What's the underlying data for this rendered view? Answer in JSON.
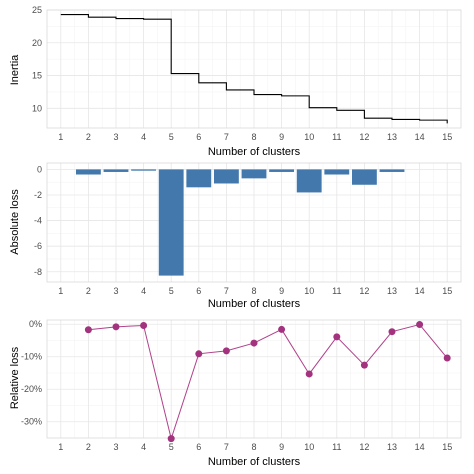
{
  "chart_data": [
    {
      "type": "line",
      "step": true,
      "title": "",
      "xlabel": "Number of clusters",
      "ylabel": "Inertia",
      "xlim": [
        0.5,
        15.5
      ],
      "ylim": [
        7,
        25
      ],
      "x_ticks": [
        1,
        2,
        3,
        4,
        5,
        6,
        7,
        8,
        9,
        10,
        11,
        12,
        13,
        14,
        15
      ],
      "y_ticks": [
        10,
        15,
        20,
        25
      ],
      "y_tick_labels": [
        "10",
        "15",
        "20",
        "25"
      ],
      "grid": true,
      "x": [
        1,
        2,
        3,
        4,
        5,
        6,
        7,
        8,
        9,
        10,
        11,
        12,
        13,
        14,
        15
      ],
      "values": [
        24.3,
        23.9,
        23.7,
        23.6,
        15.3,
        13.9,
        12.8,
        12.1,
        11.9,
        10.1,
        9.7,
        8.5,
        8.3,
        8.2,
        7.7
      ],
      "line_color": "#000000"
    },
    {
      "type": "bar",
      "title": "",
      "xlabel": "Number of clusters",
      "ylabel": "Absolute loss",
      "xlim": [
        0.5,
        15.5
      ],
      "ylim": [
        -8.8,
        0.5
      ],
      "x_ticks": [
        1,
        2,
        3,
        4,
        5,
        6,
        7,
        8,
        9,
        10,
        11,
        12,
        13,
        14,
        15
      ],
      "y_ticks": [
        0,
        -2,
        -4,
        -6,
        -8
      ],
      "y_tick_labels": [
        "0",
        "-2",
        "-4",
        "-6",
        "-8"
      ],
      "grid": true,
      "x": [
        2,
        3,
        4,
        5,
        6,
        7,
        8,
        9,
        10,
        11,
        12,
        13
      ],
      "values": [
        -0.4,
        -0.2,
        -0.1,
        -8.3,
        -1.4,
        -1.1,
        -0.7,
        -0.2,
        -1.8,
        -0.4,
        -1.2,
        -0.2
      ],
      "bar_color": "#4278ab"
    },
    {
      "type": "line",
      "markers": true,
      "title": "",
      "xlabel": "Number of clusters",
      "ylabel": "Relative loss",
      "xlim": [
        0.5,
        15.5
      ],
      "ylim": [
        -35,
        1.3
      ],
      "x_ticks": [
        1,
        2,
        3,
        4,
        5,
        6,
        7,
        8,
        9,
        10,
        11,
        12,
        13,
        14,
        15
      ],
      "y_ticks": [
        0,
        -10,
        -20,
        -30
      ],
      "y_tick_labels": [
        "0%",
        "-10%",
        "-20%",
        "-30%"
      ],
      "grid": true,
      "x": [
        2,
        3,
        4,
        5,
        6,
        7,
        8,
        9,
        10,
        11,
        12,
        13,
        14,
        15
      ],
      "values": [
        -1.7,
        -0.8,
        -0.4,
        -35.2,
        -9.1,
        -8.2,
        -5.8,
        -1.6,
        -15.3,
        -3.9,
        -12.6,
        -2.3,
        -0.1,
        -10.4
      ],
      "line_color": "#b0418a",
      "point_color": "#a3327f"
    }
  ]
}
